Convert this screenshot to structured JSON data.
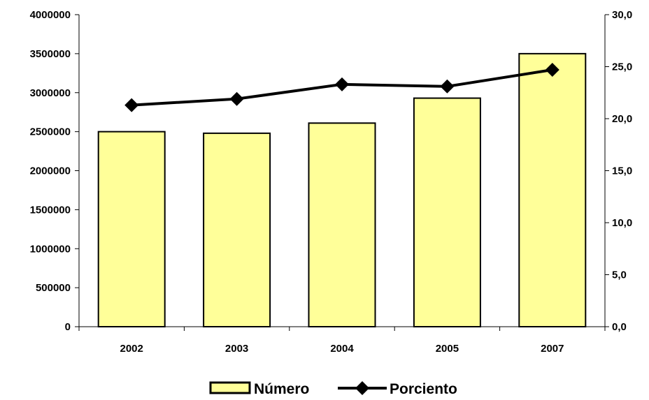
{
  "chart_data": {
    "type": "bar",
    "categories": [
      "2002",
      "2003",
      "2004",
      "2005",
      "2007"
    ],
    "series": [
      {
        "name": "Número",
        "chart_type": "bar",
        "axis": "left",
        "color": "#FFFF99",
        "values": [
          2500000,
          2480000,
          2610000,
          2930000,
          3500000
        ]
      },
      {
        "name": "Porciento",
        "chart_type": "line",
        "axis": "right",
        "color": "#000000",
        "marker": "diamond",
        "values": [
          21.3,
          21.9,
          23.3,
          23.1,
          24.7
        ]
      }
    ],
    "y_left": {
      "range": [
        0,
        4000000
      ],
      "ticks": [
        "0",
        "500000",
        "1000000",
        "1500000",
        "2000000",
        "2500000",
        "3000000",
        "3500000",
        "4000000"
      ]
    },
    "y_right": {
      "range": [
        0,
        30
      ],
      "ticks": [
        "0,0",
        "5,0",
        "10,0",
        "15,0",
        "20,0",
        "25,0",
        "30,0"
      ]
    },
    "grid": false,
    "legend_position": "bottom",
    "title": "",
    "xlabel": "",
    "ylabel": ""
  }
}
